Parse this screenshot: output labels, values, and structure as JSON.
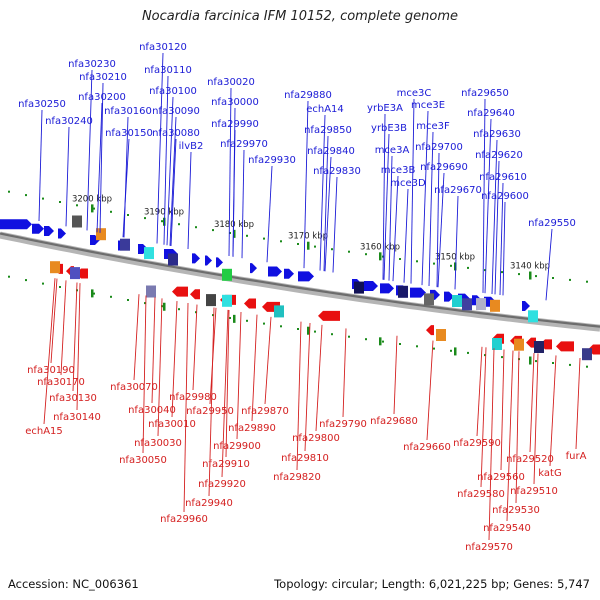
{
  "title": "Nocardia farcinica IFM 10152, complete genome",
  "footer": {
    "accession": "Accession: NC_006361",
    "summary": "Topology: circular; Length: 6,021,225 bp; Genes: 5,747"
  },
  "colors": {
    "forward": "#1010e0",
    "reverse": "#e81010",
    "backbone": "#8a8a8a",
    "ticks": "#1a8a1a"
  },
  "ticks": [
    "3200 kbp",
    "3190 kbp",
    "3180 kbp",
    "3170 kbp",
    "3160 kbp",
    "3150 kbp",
    "3140 kbp"
  ],
  "forward_labels": [
    "nfa30120",
    "nfa30230",
    "nfa30110",
    "nfa30210",
    "nfa30020",
    "nfa30100",
    "nfa30200",
    "nfa29880",
    "nfa30250",
    "nfa30000",
    "nfa30090",
    "echA14",
    "nfa30160",
    "nfa30240",
    "nfa29990",
    "nfa30150",
    "nfa30080",
    "nfa29850",
    "ilvB2",
    "nfa29970",
    "nfa29840",
    "nfa29930",
    "nfa29830",
    "mce3C",
    "yrbE3A",
    "mce3E",
    "yrbE3B",
    "mce3F",
    "mce3A",
    "nfa29700",
    "nfa29690",
    "mce3B",
    "mce3D",
    "nfa29670",
    "nfa29650",
    "nfa29640",
    "nfa29630",
    "nfa29620",
    "nfa29610",
    "nfa29600",
    "nfa29550"
  ],
  "reverse_labels": [
    "nfa30190",
    "nfa30170",
    "nfa30130",
    "nfa30140",
    "echA15",
    "nfa30070",
    "nfa29980",
    "nfa30040",
    "nfa29950",
    "nfa30010",
    "nfa30030",
    "nfa30050",
    "nfa29870",
    "nfa29890",
    "nfa29900",
    "nfa29910",
    "nfa29920",
    "nfa29940",
    "nfa29960",
    "nfa29790",
    "nfa29800",
    "nfa29810",
    "nfa29820",
    "nfa29680",
    "nfa29660",
    "nfa29590",
    "nfa29520",
    "nfa29560",
    "katG",
    "nfa29580",
    "nfa29510",
    "nfa29530",
    "nfa29540",
    "nfa29570",
    "furA"
  ]
}
